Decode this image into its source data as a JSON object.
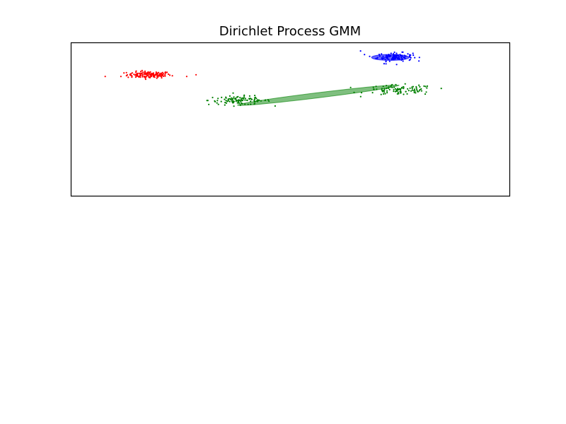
{
  "chart_data": {
    "type": "scatter",
    "title": "Dirichlet Process GMM",
    "xlabel": "",
    "ylabel": "",
    "xticks": [],
    "yticks": [],
    "grid": false,
    "legend": false,
    "xlim": [
      -9,
      5
    ],
    "ylim": [
      -3,
      6
    ],
    "series": [
      {
        "color": "#ff0000",
        "center": [
          -6.5,
          4.1
        ],
        "spread": [
          0.35,
          0.1
        ],
        "count": 150,
        "outliers": [
          [
            -7.9,
            4.0
          ],
          [
            -7.4,
            4.0
          ],
          [
            -5.3,
            4.0
          ],
          [
            -5.0,
            4.1
          ]
        ],
        "ellipse": {
          "center": [
            -6.5,
            4.15
          ],
          "width": 1.1,
          "height": 0.35,
          "angle_deg": 0,
          "alpha": 0
        }
      },
      {
        "color": "#0000ff",
        "center": [
          1.35,
          5.15
        ],
        "spread": [
          0.28,
          0.12
        ],
        "count": 120,
        "outliers": [
          [
            0.25,
            5.5
          ],
          [
            1.0,
            4.75
          ],
          [
            1.4,
            4.7
          ]
        ],
        "ellipse": {
          "center": [
            1.2,
            5.12
          ],
          "width": 1.2,
          "height": 0.35,
          "angle_deg": 0,
          "alpha": 0.6
        }
      },
      {
        "color": "#008000",
        "clusters": [
          {
            "center": [
              -3.6,
              2.6
            ],
            "spread": [
              0.5,
              0.13
            ],
            "count": 110
          },
          {
            "center": [
              1.5,
              3.2
            ],
            "spread": [
              0.55,
              0.15
            ],
            "count": 100
          }
        ],
        "ellipse": {
          "center": [
            -1.1,
            2.9
          ],
          "width": 5.2,
          "height": 0.3,
          "angle_deg": 7,
          "alpha": 0.5
        }
      }
    ]
  }
}
